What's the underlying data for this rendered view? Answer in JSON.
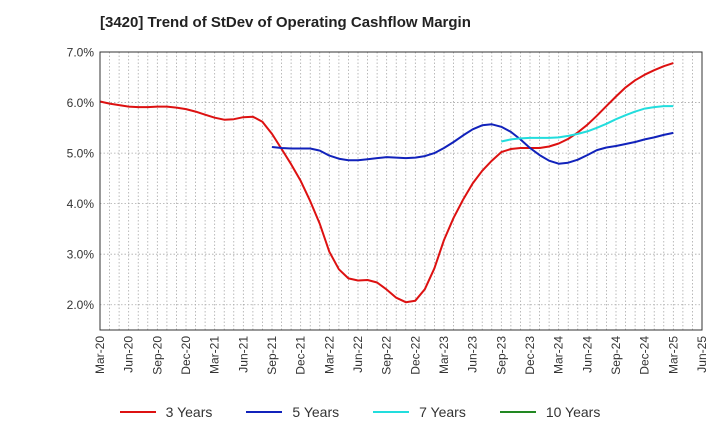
{
  "chart_data": {
    "type": "line",
    "title": "[3420]  Trend of StDev of Operating Cashflow Margin",
    "xlabel": "",
    "ylabel": "",
    "x_ticks": [
      "Mar-20",
      "Jun-20",
      "Sep-20",
      "Dec-20",
      "Mar-21",
      "Jun-21",
      "Sep-21",
      "Dec-21",
      "Mar-22",
      "Jun-22",
      "Sep-22",
      "Dec-22",
      "Mar-23",
      "Jun-23",
      "Sep-23",
      "Dec-23",
      "Mar-24",
      "Jun-24",
      "Sep-24",
      "Dec-24",
      "Mar-25",
      "Jun-25"
    ],
    "x_start": "2020-03",
    "x_end": "2025-06",
    "y_ticks": [
      "2.0%",
      "3.0%",
      "4.0%",
      "5.0%",
      "6.0%",
      "7.0%"
    ],
    "ylim": [
      1.5,
      7.0
    ],
    "grid": true,
    "legend_position": "bottom",
    "series": [
      {
        "name": "3 Years",
        "color": "#dd1111",
        "points": [
          [
            "2020-03",
            6.02
          ],
          [
            "2020-04",
            5.98
          ],
          [
            "2020-05",
            5.95
          ],
          [
            "2020-06",
            5.92
          ],
          [
            "2020-07",
            5.91
          ],
          [
            "2020-08",
            5.91
          ],
          [
            "2020-09",
            5.92
          ],
          [
            "2020-10",
            5.92
          ],
          [
            "2020-11",
            5.9
          ],
          [
            "2020-12",
            5.87
          ],
          [
            "2021-01",
            5.82
          ],
          [
            "2021-02",
            5.76
          ],
          [
            "2021-03",
            5.7
          ],
          [
            "2021-04",
            5.66
          ],
          [
            "2021-05",
            5.67
          ],
          [
            "2021-06",
            5.71
          ],
          [
            "2021-07",
            5.72
          ],
          [
            "2021-08",
            5.62
          ],
          [
            "2021-09",
            5.38
          ],
          [
            "2021-10",
            5.08
          ],
          [
            "2021-11",
            4.78
          ],
          [
            "2021-12",
            4.45
          ],
          [
            "2022-01",
            4.05
          ],
          [
            "2022-02",
            3.6
          ],
          [
            "2022-03",
            3.05
          ],
          [
            "2022-04",
            2.7
          ],
          [
            "2022-05",
            2.52
          ],
          [
            "2022-06",
            2.48
          ],
          [
            "2022-07",
            2.49
          ],
          [
            "2022-08",
            2.44
          ],
          [
            "2022-09",
            2.3
          ],
          [
            "2022-10",
            2.14
          ],
          [
            "2022-11",
            2.05
          ],
          [
            "2022-12",
            2.08
          ],
          [
            "2023-01",
            2.31
          ],
          [
            "2023-02",
            2.72
          ],
          [
            "2023-03",
            3.28
          ],
          [
            "2023-04",
            3.72
          ],
          [
            "2023-05",
            4.08
          ],
          [
            "2023-06",
            4.4
          ],
          [
            "2023-07",
            4.65
          ],
          [
            "2023-08",
            4.85
          ],
          [
            "2023-09",
            5.02
          ],
          [
            "2023-10",
            5.08
          ],
          [
            "2023-11",
            5.1
          ],
          [
            "2023-12",
            5.1
          ],
          [
            "2024-01",
            5.1
          ],
          [
            "2024-02",
            5.13
          ],
          [
            "2024-03",
            5.19
          ],
          [
            "2024-04",
            5.28
          ],
          [
            "2024-05",
            5.41
          ],
          [
            "2024-06",
            5.56
          ],
          [
            "2024-07",
            5.74
          ],
          [
            "2024-08",
            5.93
          ],
          [
            "2024-09",
            6.12
          ],
          [
            "2024-10",
            6.3
          ],
          [
            "2024-11",
            6.44
          ],
          [
            "2024-12",
            6.55
          ],
          [
            "2025-01",
            6.64
          ],
          [
            "2025-02",
            6.72
          ],
          [
            "2025-03",
            6.78
          ]
        ]
      },
      {
        "name": "5 Years",
        "color": "#1122bb",
        "points": [
          [
            "2021-09",
            5.12
          ],
          [
            "2021-10",
            5.1
          ],
          [
            "2021-11",
            5.09
          ],
          [
            "2021-12",
            5.09
          ],
          [
            "2022-01",
            5.09
          ],
          [
            "2022-02",
            5.05
          ],
          [
            "2022-03",
            4.95
          ],
          [
            "2022-04",
            4.89
          ],
          [
            "2022-05",
            4.86
          ],
          [
            "2022-06",
            4.86
          ],
          [
            "2022-07",
            4.88
          ],
          [
            "2022-08",
            4.9
          ],
          [
            "2022-09",
            4.92
          ],
          [
            "2022-10",
            4.91
          ],
          [
            "2022-11",
            4.9
          ],
          [
            "2022-12",
            4.91
          ],
          [
            "2023-01",
            4.94
          ],
          [
            "2023-02",
            5.0
          ],
          [
            "2023-03",
            5.1
          ],
          [
            "2023-04",
            5.22
          ],
          [
            "2023-05",
            5.35
          ],
          [
            "2023-06",
            5.47
          ],
          [
            "2023-07",
            5.55
          ],
          [
            "2023-08",
            5.57
          ],
          [
            "2023-09",
            5.52
          ],
          [
            "2023-10",
            5.42
          ],
          [
            "2023-11",
            5.27
          ],
          [
            "2023-12",
            5.1
          ],
          [
            "2024-01",
            4.96
          ],
          [
            "2024-02",
            4.85
          ],
          [
            "2024-03",
            4.79
          ],
          [
            "2024-04",
            4.81
          ],
          [
            "2024-05",
            4.87
          ],
          [
            "2024-06",
            4.96
          ],
          [
            "2024-07",
            5.06
          ],
          [
            "2024-08",
            5.11
          ],
          [
            "2024-09",
            5.14
          ],
          [
            "2024-10",
            5.18
          ],
          [
            "2024-11",
            5.22
          ],
          [
            "2024-12",
            5.27
          ],
          [
            "2025-01",
            5.31
          ],
          [
            "2025-02",
            5.36
          ],
          [
            "2025-03",
            5.4
          ]
        ]
      },
      {
        "name": "7 Years",
        "color": "#22dddd",
        "points": [
          [
            "2023-09",
            5.23
          ],
          [
            "2023-10",
            5.27
          ],
          [
            "2023-11",
            5.29
          ],
          [
            "2023-12",
            5.3
          ],
          [
            "2024-01",
            5.3
          ],
          [
            "2024-02",
            5.3
          ],
          [
            "2024-03",
            5.31
          ],
          [
            "2024-04",
            5.34
          ],
          [
            "2024-05",
            5.38
          ],
          [
            "2024-06",
            5.43
          ],
          [
            "2024-07",
            5.5
          ],
          [
            "2024-08",
            5.58
          ],
          [
            "2024-09",
            5.67
          ],
          [
            "2024-10",
            5.75
          ],
          [
            "2024-11",
            5.82
          ],
          [
            "2024-12",
            5.88
          ],
          [
            "2025-01",
            5.91
          ],
          [
            "2025-02",
            5.93
          ],
          [
            "2025-03",
            5.93
          ]
        ]
      },
      {
        "name": "10 Years",
        "color": "#228822",
        "points": []
      }
    ]
  }
}
